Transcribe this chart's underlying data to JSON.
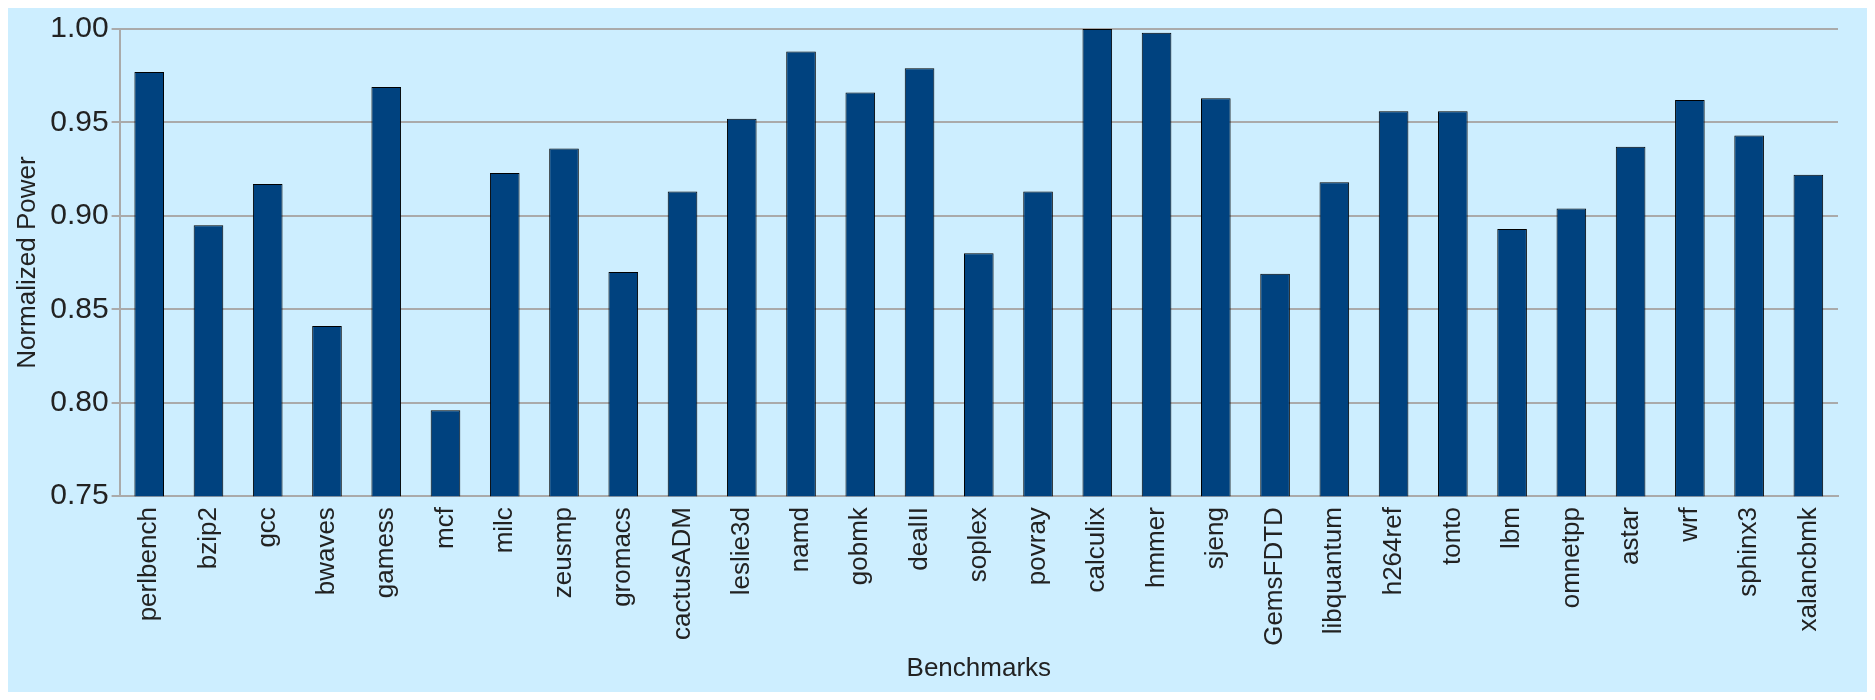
{
  "chart_data": {
    "type": "bar",
    "xlabel": "Benchmarks",
    "ylabel": "Normalized Power",
    "categories": [
      "perlbench",
      "bzip2",
      "gcc",
      "bwaves",
      "gamess",
      "mcf",
      "milc",
      "zeusmp",
      "gromacs",
      "cactusADM",
      "leslie3d",
      "namd",
      "gobmk",
      "dealII",
      "soplex",
      "povray",
      "calculix",
      "hmmer",
      "sjeng",
      "GemsFDTD",
      "libquantum",
      "h264ref",
      "tonto",
      "lbm",
      "omnetpp",
      "astar",
      "wrf",
      "sphinx3",
      "xalancbmk"
    ],
    "values": [
      0.977,
      0.895,
      0.917,
      0.841,
      0.969,
      0.796,
      0.923,
      0.936,
      0.87,
      0.913,
      0.952,
      0.988,
      0.966,
      0.979,
      0.88,
      0.913,
      1.0,
      0.998,
      0.963,
      0.869,
      0.918,
      0.956,
      0.956,
      0.893,
      0.904,
      0.937,
      0.962,
      0.943,
      0.922
    ],
    "color": "#00427f",
    "ylim": [
      0.75,
      1.0
    ],
    "yticks": [
      {
        "value": 0.75,
        "label": "0.75"
      },
      {
        "value": 0.8,
        "label": "0.80"
      },
      {
        "value": 0.85,
        "label": "0.85"
      },
      {
        "value": 0.9,
        "label": "0.90"
      },
      {
        "value": 0.95,
        "label": "0.95"
      },
      {
        "value": 1.0,
        "label": "1.00"
      }
    ],
    "grid": "y",
    "legend": false
  }
}
